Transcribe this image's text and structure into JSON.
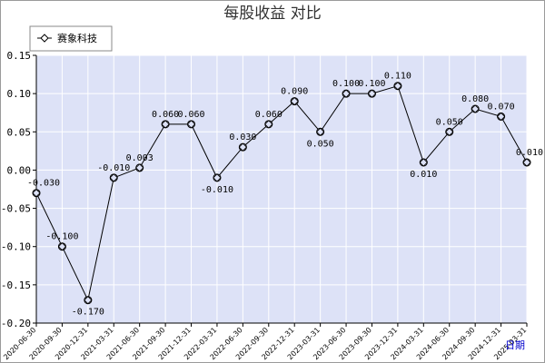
{
  "chart_data": {
    "type": "line",
    "title": "每股收益  对比",
    "xlabel": "日期",
    "ylabel": "",
    "ylim": [
      -0.2,
      0.15
    ],
    "yticks": [
      "0.15",
      "0.10",
      "0.05",
      "0.00",
      "-0.05",
      "-0.10",
      "-0.15",
      "-0.20"
    ],
    "ytick_values": [
      0.15,
      0.1,
      0.05,
      0.0,
      -0.05,
      -0.1,
      -0.15,
      -0.2
    ],
    "legend": "top-left",
    "grid": true,
    "categories": [
      "2020-06-30",
      "2020-09-30",
      "2020-12-31",
      "2021-03-31",
      "2021-06-30",
      "2021-09-30",
      "2021-12-31",
      "2022-03-31",
      "2022-06-30",
      "2022-09-30",
      "2022-12-31",
      "2023-03-31",
      "2023-06-30",
      "2023-09-30",
      "2023-12-31",
      "2024-03-31",
      "2024-06-30",
      "2024-09-30",
      "2024-12-31",
      "2025-03-31"
    ],
    "series": [
      {
        "name": "赛象科技",
        "color": "#000000",
        "values": [
          -0.03,
          -0.1,
          -0.17,
          -0.01,
          0.003,
          0.06,
          0.06,
          -0.01,
          0.03,
          0.06,
          0.09,
          0.05,
          0.1,
          0.1,
          0.11,
          0.01,
          0.05,
          0.08,
          0.07,
          0.01
        ],
        "labels": [
          "-0.030",
          "-0.100",
          "-0.170",
          "-0.010",
          "0.003",
          "0.060",
          "0.060",
          "-0.010",
          "0.030",
          "0.060",
          "0.090",
          "0.050",
          "0.100",
          "0.100",
          "0.110",
          "0.010",
          "0.050",
          "0.080",
          "0.070",
          "0.010"
        ]
      }
    ],
    "colors": {
      "plot_background": "#dde2f7",
      "grid": "#ffffff",
      "line": "#000000",
      "marker_fill": "#dde2f7"
    }
  }
}
